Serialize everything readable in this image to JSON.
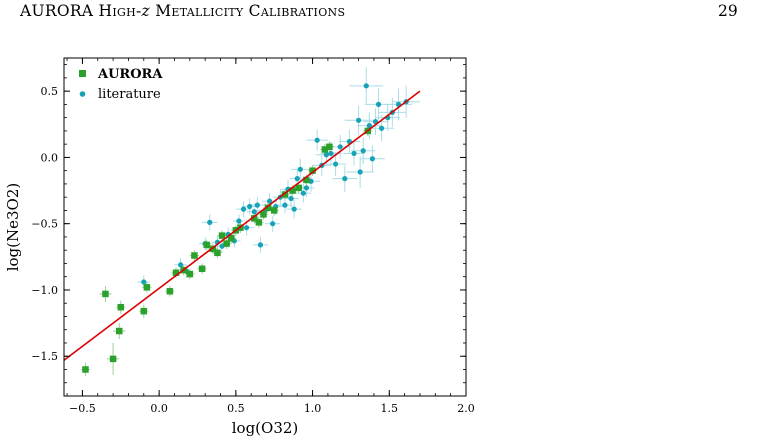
{
  "running_head": {
    "part1": "AURORA",
    "part2": "High-",
    "part3": "z",
    "part4": "Metallicity Calibrations"
  },
  "page_number": "29",
  "chart_data": {
    "type": "scatter",
    "xlabel": "log(O32)",
    "ylabel": "log(Ne3O2)",
    "xlim": [
      -0.62,
      2.0
    ],
    "ylim": [
      -1.8,
      0.75
    ],
    "xticks": [
      -0.5,
      0.0,
      0.5,
      1.0,
      1.5,
      2.0
    ],
    "xtick_labels": [
      "−0.5",
      "0.0",
      "0.5",
      "1.0",
      "1.5",
      "2.0"
    ],
    "yticks": [
      -1.5,
      -1.0,
      -0.5,
      0.0,
      0.5
    ],
    "ytick_labels": [
      "−1.5",
      "−1.0",
      "−0.5",
      "0.0",
      "0.5"
    ],
    "legend_position": "top-left",
    "fit_line": {
      "color": "#dd0000",
      "x": [
        -0.62,
        1.7
      ],
      "y": [
        -1.53,
        0.5
      ]
    },
    "series": [
      {
        "name": "AURORA",
        "marker": "square",
        "color": "#2ca02c",
        "errcolor": "#9ad29a",
        "points": [
          {
            "x": -0.48,
            "y": -1.6,
            "ex": 0.03,
            "ey": 0.05
          },
          {
            "x": -0.35,
            "y": -1.03,
            "ex": 0.04,
            "ey": 0.06
          },
          {
            "x": -0.3,
            "y": -1.52,
            "ex": 0.04,
            "ey": 0.12
          },
          {
            "x": -0.26,
            "y": -1.31,
            "ex": 0.04,
            "ey": 0.06
          },
          {
            "x": -0.25,
            "y": -1.13,
            "ex": 0.03,
            "ey": 0.05
          },
          {
            "x": -0.1,
            "y": -1.16,
            "ex": 0.03,
            "ey": 0.05
          },
          {
            "x": -0.08,
            "y": -0.98,
            "ex": 0.03,
            "ey": 0.04
          },
          {
            "x": 0.07,
            "y": -1.01,
            "ex": 0.03,
            "ey": 0.04
          },
          {
            "x": 0.11,
            "y": -0.87,
            "ex": 0.03,
            "ey": 0.04
          },
          {
            "x": 0.16,
            "y": -0.85,
            "ex": 0.03,
            "ey": 0.04
          },
          {
            "x": 0.2,
            "y": -0.88,
            "ex": 0.03,
            "ey": 0.04
          },
          {
            "x": 0.23,
            "y": -0.74,
            "ex": 0.03,
            "ey": 0.04
          },
          {
            "x": 0.28,
            "y": -0.84,
            "ex": 0.03,
            "ey": 0.04
          },
          {
            "x": 0.31,
            "y": -0.66,
            "ex": 0.03,
            "ey": 0.04
          },
          {
            "x": 0.35,
            "y": -0.69,
            "ex": 0.03,
            "ey": 0.04
          },
          {
            "x": 0.38,
            "y": -0.72,
            "ex": 0.03,
            "ey": 0.04
          },
          {
            "x": 0.41,
            "y": -0.59,
            "ex": 0.03,
            "ey": 0.04
          },
          {
            "x": 0.44,
            "y": -0.65,
            "ex": 0.03,
            "ey": 0.04
          },
          {
            "x": 0.47,
            "y": -0.61,
            "ex": 0.03,
            "ey": 0.04
          },
          {
            "x": 0.5,
            "y": -0.55,
            "ex": 0.03,
            "ey": 0.04
          },
          {
            "x": 0.53,
            "y": -0.53,
            "ex": 0.03,
            "ey": 0.04
          },
          {
            "x": 0.62,
            "y": -0.46,
            "ex": 0.03,
            "ey": 0.04
          },
          {
            "x": 0.65,
            "y": -0.49,
            "ex": 0.03,
            "ey": 0.04
          },
          {
            "x": 0.68,
            "y": -0.43,
            "ex": 0.03,
            "ey": 0.04
          },
          {
            "x": 0.71,
            "y": -0.38,
            "ex": 0.03,
            "ey": 0.04
          },
          {
            "x": 0.75,
            "y": -0.4,
            "ex": 0.03,
            "ey": 0.04
          },
          {
            "x": 0.82,
            "y": -0.28,
            "ex": 0.03,
            "ey": 0.04
          },
          {
            "x": 0.87,
            "y": -0.25,
            "ex": 0.03,
            "ey": 0.04
          },
          {
            "x": 0.91,
            "y": -0.23,
            "ex": 0.03,
            "ey": 0.04
          },
          {
            "x": 0.96,
            "y": -0.17,
            "ex": 0.03,
            "ey": 0.04
          },
          {
            "x": 1.0,
            "y": -0.1,
            "ex": 0.03,
            "ey": 0.04
          },
          {
            "x": 1.08,
            "y": 0.06,
            "ex": 0.03,
            "ey": 0.04
          },
          {
            "x": 1.11,
            "y": 0.08,
            "ex": 0.03,
            "ey": 0.04
          },
          {
            "x": 1.36,
            "y": 0.2,
            "ex": 0.03,
            "ey": 0.04
          }
        ]
      },
      {
        "name": "literature",
        "marker": "circle",
        "color": "#17a2b8",
        "errcolor": "#a8dde6",
        "points": [
          {
            "x": -0.1,
            "y": -0.94,
            "ex": 0.04,
            "ey": 0.05
          },
          {
            "x": 0.14,
            "y": -0.81,
            "ex": 0.04,
            "ey": 0.05
          },
          {
            "x": 0.18,
            "y": -0.86,
            "ex": 0.04,
            "ey": 0.05
          },
          {
            "x": 0.3,
            "y": -0.65,
            "ex": 0.04,
            "ey": 0.05
          },
          {
            "x": 0.33,
            "y": -0.49,
            "ex": 0.05,
            "ey": 0.06
          },
          {
            "x": 0.38,
            "y": -0.64,
            "ex": 0.04,
            "ey": 0.05
          },
          {
            "x": 0.41,
            "y": -0.67,
            "ex": 0.04,
            "ey": 0.05
          },
          {
            "x": 0.45,
            "y": -0.58,
            "ex": 0.04,
            "ey": 0.05
          },
          {
            "x": 0.49,
            "y": -0.63,
            "ex": 0.04,
            "ey": 0.05
          },
          {
            "x": 0.52,
            "y": -0.48,
            "ex": 0.04,
            "ey": 0.05
          },
          {
            "x": 0.55,
            "y": -0.39,
            "ex": 0.05,
            "ey": 0.06
          },
          {
            "x": 0.57,
            "y": -0.53,
            "ex": 0.05,
            "ey": 0.06
          },
          {
            "x": 0.59,
            "y": -0.37,
            "ex": 0.05,
            "ey": 0.06
          },
          {
            "x": 0.62,
            "y": -0.41,
            "ex": 0.05,
            "ey": 0.06
          },
          {
            "x": 0.64,
            "y": -0.36,
            "ex": 0.05,
            "ey": 0.06
          },
          {
            "x": 0.66,
            "y": -0.66,
            "ex": 0.05,
            "ey": 0.06
          },
          {
            "x": 0.69,
            "y": -0.4,
            "ex": 0.05,
            "ey": 0.06
          },
          {
            "x": 0.72,
            "y": -0.33,
            "ex": 0.05,
            "ey": 0.06
          },
          {
            "x": 0.74,
            "y": -0.5,
            "ex": 0.05,
            "ey": 0.06
          },
          {
            "x": 0.76,
            "y": -0.37,
            "ex": 0.05,
            "ey": 0.06
          },
          {
            "x": 0.79,
            "y": -0.3,
            "ex": 0.05,
            "ey": 0.06
          },
          {
            "x": 0.82,
            "y": -0.36,
            "ex": 0.05,
            "ey": 0.06
          },
          {
            "x": 0.84,
            "y": -0.24,
            "ex": 0.05,
            "ey": 0.07
          },
          {
            "x": 0.86,
            "y": -0.31,
            "ex": 0.05,
            "ey": 0.07
          },
          {
            "x": 0.88,
            "y": -0.39,
            "ex": 0.05,
            "ey": 0.07
          },
          {
            "x": 0.9,
            "y": -0.16,
            "ex": 0.05,
            "ey": 0.07
          },
          {
            "x": 0.92,
            "y": -0.09,
            "ex": 0.06,
            "ey": 0.08
          },
          {
            "x": 0.94,
            "y": -0.27,
            "ex": 0.05,
            "ey": 0.07
          },
          {
            "x": 0.96,
            "y": -0.23,
            "ex": 0.05,
            "ey": 0.07
          },
          {
            "x": 0.99,
            "y": -0.18,
            "ex": 0.06,
            "ey": 0.08
          },
          {
            "x": 1.03,
            "y": 0.13,
            "ex": 0.07,
            "ey": 0.08
          },
          {
            "x": 1.06,
            "y": -0.06,
            "ex": 0.06,
            "ey": 0.08
          },
          {
            "x": 1.09,
            "y": 0.02,
            "ex": 0.07,
            "ey": 0.08
          },
          {
            "x": 1.12,
            "y": 0.03,
            "ex": 0.07,
            "ey": 0.09
          },
          {
            "x": 1.15,
            "y": -0.05,
            "ex": 0.07,
            "ey": 0.09
          },
          {
            "x": 1.18,
            "y": 0.08,
            "ex": 0.07,
            "ey": 0.09
          },
          {
            "x": 1.21,
            "y": -0.16,
            "ex": 0.08,
            "ey": 0.1
          },
          {
            "x": 1.24,
            "y": 0.12,
            "ex": 0.07,
            "ey": 0.09
          },
          {
            "x": 1.27,
            "y": 0.03,
            "ex": 0.07,
            "ey": 0.09
          },
          {
            "x": 1.3,
            "y": 0.28,
            "ex": 0.09,
            "ey": 0.11
          },
          {
            "x": 1.31,
            "y": -0.11,
            "ex": 0.09,
            "ey": 0.12
          },
          {
            "x": 1.33,
            "y": 0.05,
            "ex": 0.08,
            "ey": 0.1
          },
          {
            "x": 1.35,
            "y": 0.54,
            "ex": 0.11,
            "ey": 0.14
          },
          {
            "x": 1.37,
            "y": 0.24,
            "ex": 0.08,
            "ey": 0.1
          },
          {
            "x": 1.39,
            "y": -0.01,
            "ex": 0.08,
            "ey": 0.1
          },
          {
            "x": 1.41,
            "y": 0.27,
            "ex": 0.08,
            "ey": 0.1
          },
          {
            "x": 1.43,
            "y": 0.4,
            "ex": 0.09,
            "ey": 0.12
          },
          {
            "x": 1.45,
            "y": 0.22,
            "ex": 0.08,
            "ey": 0.1
          },
          {
            "x": 1.49,
            "y": 0.3,
            "ex": 0.08,
            "ey": 0.1
          },
          {
            "x": 1.52,
            "y": 0.34,
            "ex": 0.09,
            "ey": 0.11
          },
          {
            "x": 1.56,
            "y": 0.4,
            "ex": 0.09,
            "ey": 0.12
          },
          {
            "x": 1.61,
            "y": 0.42,
            "ex": 0.09,
            "ey": 0.12
          }
        ]
      }
    ]
  }
}
